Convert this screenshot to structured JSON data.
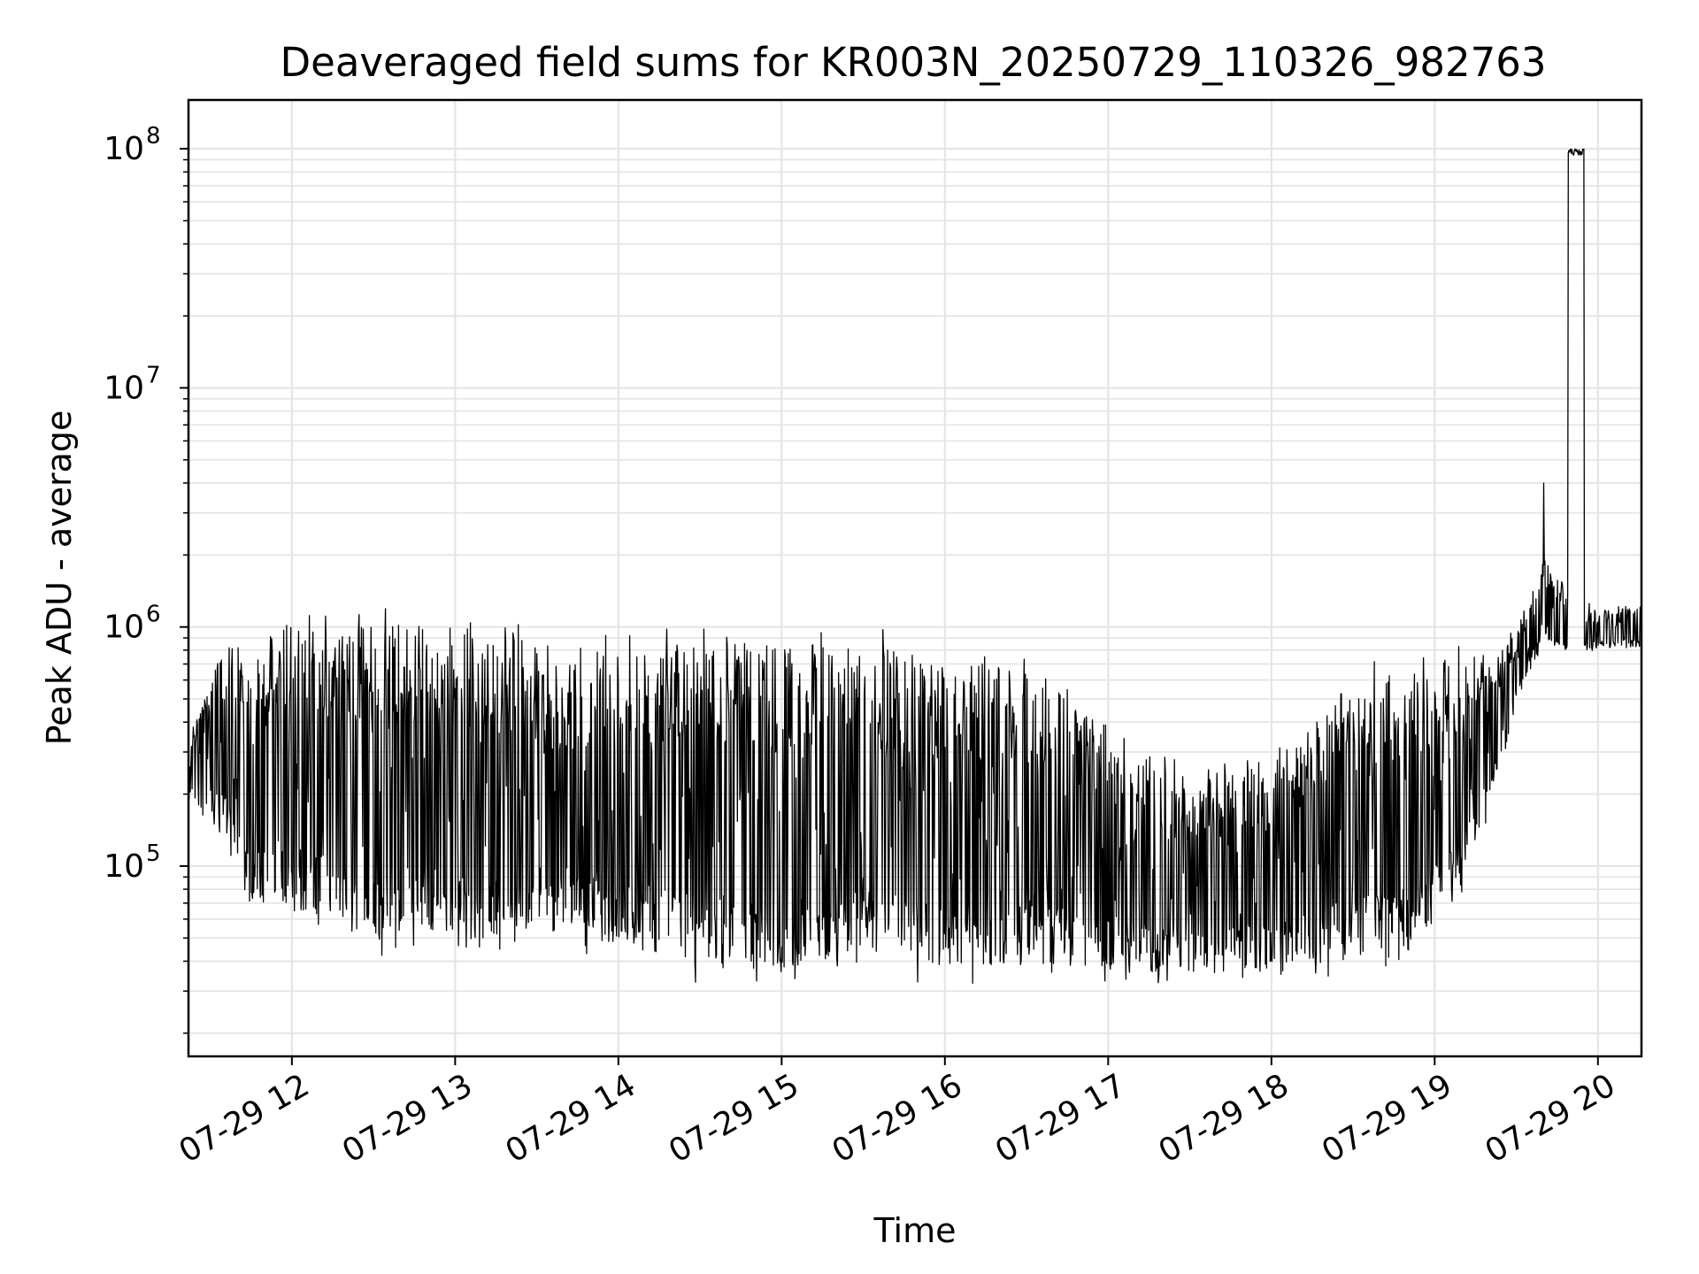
{
  "chart_data": {
    "type": "line",
    "title": "Deaveraged field sums for KR003N_20250729_110326_982763",
    "xlabel": "Time",
    "ylabel": "Peak ADU - average",
    "yscale": "log",
    "ylim": [
      16000,
      160000000
    ],
    "xlim": [
      "2025-07-29 11:22",
      "2025-07-29 20:16"
    ],
    "grid": true,
    "grid_color": "#e5e5e5",
    "line_color": "#000000",
    "x_ticks": [
      {
        "label": "07-29 12",
        "time": "2025-07-29 12:00"
      },
      {
        "label": "07-29 13",
        "time": "2025-07-29 13:00"
      },
      {
        "label": "07-29 14",
        "time": "2025-07-29 14:00"
      },
      {
        "label": "07-29 15",
        "time": "2025-07-29 15:00"
      },
      {
        "label": "07-29 16",
        "time": "2025-07-29 16:00"
      },
      {
        "label": "07-29 17",
        "time": "2025-07-29 17:00"
      },
      {
        "label": "07-29 18",
        "time": "2025-07-29 18:00"
      },
      {
        "label": "07-29 19",
        "time": "2025-07-29 19:00"
      },
      {
        "label": "07-29 20",
        "time": "2025-07-29 20:00"
      }
    ],
    "y_ticks": [
      {
        "base": "10",
        "exp": "5",
        "value": 100000
      },
      {
        "base": "10",
        "exp": "6",
        "value": 1000000
      },
      {
        "base": "10",
        "exp": "7",
        "value": 10000000
      },
      {
        "base": "10",
        "exp": "8",
        "value": 100000000
      }
    ],
    "series": [
      {
        "envelope": [
          {
            "time": "2025-07-29 11:22",
            "low": 180000,
            "high": 350000
          },
          {
            "time": "2025-07-29 11:35",
            "low": 120000,
            "high": 1000000
          },
          {
            "time": "2025-07-29 11:45",
            "low": 65000,
            "high": 700000
          },
          {
            "time": "2025-07-29 12:00",
            "low": 55000,
            "high": 1300000
          },
          {
            "time": "2025-07-29 12:15",
            "low": 55000,
            "high": 1200000
          },
          {
            "time": "2025-07-29 12:30",
            "low": 40000,
            "high": 1200000
          },
          {
            "time": "2025-07-29 12:45",
            "low": 45000,
            "high": 1200000
          },
          {
            "time": "2025-07-29 13:00",
            "low": 45000,
            "high": 1200000
          },
          {
            "time": "2025-07-29 13:20",
            "low": 35000,
            "high": 1200000
          },
          {
            "time": "2025-07-29 13:40",
            "low": 45000,
            "high": 750000
          },
          {
            "time": "2025-07-29 14:00",
            "low": 40000,
            "high": 1050000
          },
          {
            "time": "2025-07-29 14:30",
            "low": 32000,
            "high": 1050000
          },
          {
            "time": "2025-07-29 15:00",
            "low": 30000,
            "high": 1050000
          },
          {
            "time": "2025-07-29 15:30",
            "low": 33000,
            "high": 1050000
          },
          {
            "time": "2025-07-29 16:00",
            "low": 32000,
            "high": 850000
          },
          {
            "time": "2025-07-29 16:30",
            "low": 33000,
            "high": 750000
          },
          {
            "time": "2025-07-29 17:00",
            "low": 33000,
            "high": 450000
          },
          {
            "time": "2025-07-29 17:30",
            "low": 32000,
            "high": 250000
          },
          {
            "time": "2025-07-29 18:00",
            "low": 33000,
            "high": 300000
          },
          {
            "time": "2025-07-29 18:30",
            "low": 35000,
            "high": 700000
          },
          {
            "time": "2025-07-29 18:50",
            "low": 38000,
            "high": 750000
          },
          {
            "time": "2025-07-29 19:10",
            "low": 70000,
            "high": 900000
          },
          {
            "time": "2025-07-29 19:20",
            "low": 150000,
            "high": 750000
          },
          {
            "time": "2025-07-29 19:30",
            "low": 450000,
            "high": 1000000
          },
          {
            "time": "2025-07-29 19:40",
            "low": 850000,
            "high": 2000000
          },
          {
            "time": "2025-07-29 19:50",
            "low": 700000,
            "high": 1500000
          },
          {
            "time": "2025-07-29 20:00",
            "low": 800000,
            "high": 1200000
          },
          {
            "time": "2025-07-29 20:16",
            "low": 800000,
            "high": 1300000
          }
        ],
        "spikes": [
          {
            "time": "2025-07-29 19:40",
            "value": 4000000
          },
          {
            "time": "2025-07-29 19:49",
            "value": 100000000
          }
        ],
        "plateau": {
          "start": "2025-07-29 19:49",
          "end": "2025-07-29 19:55",
          "value": 97000000
        }
      }
    ]
  }
}
